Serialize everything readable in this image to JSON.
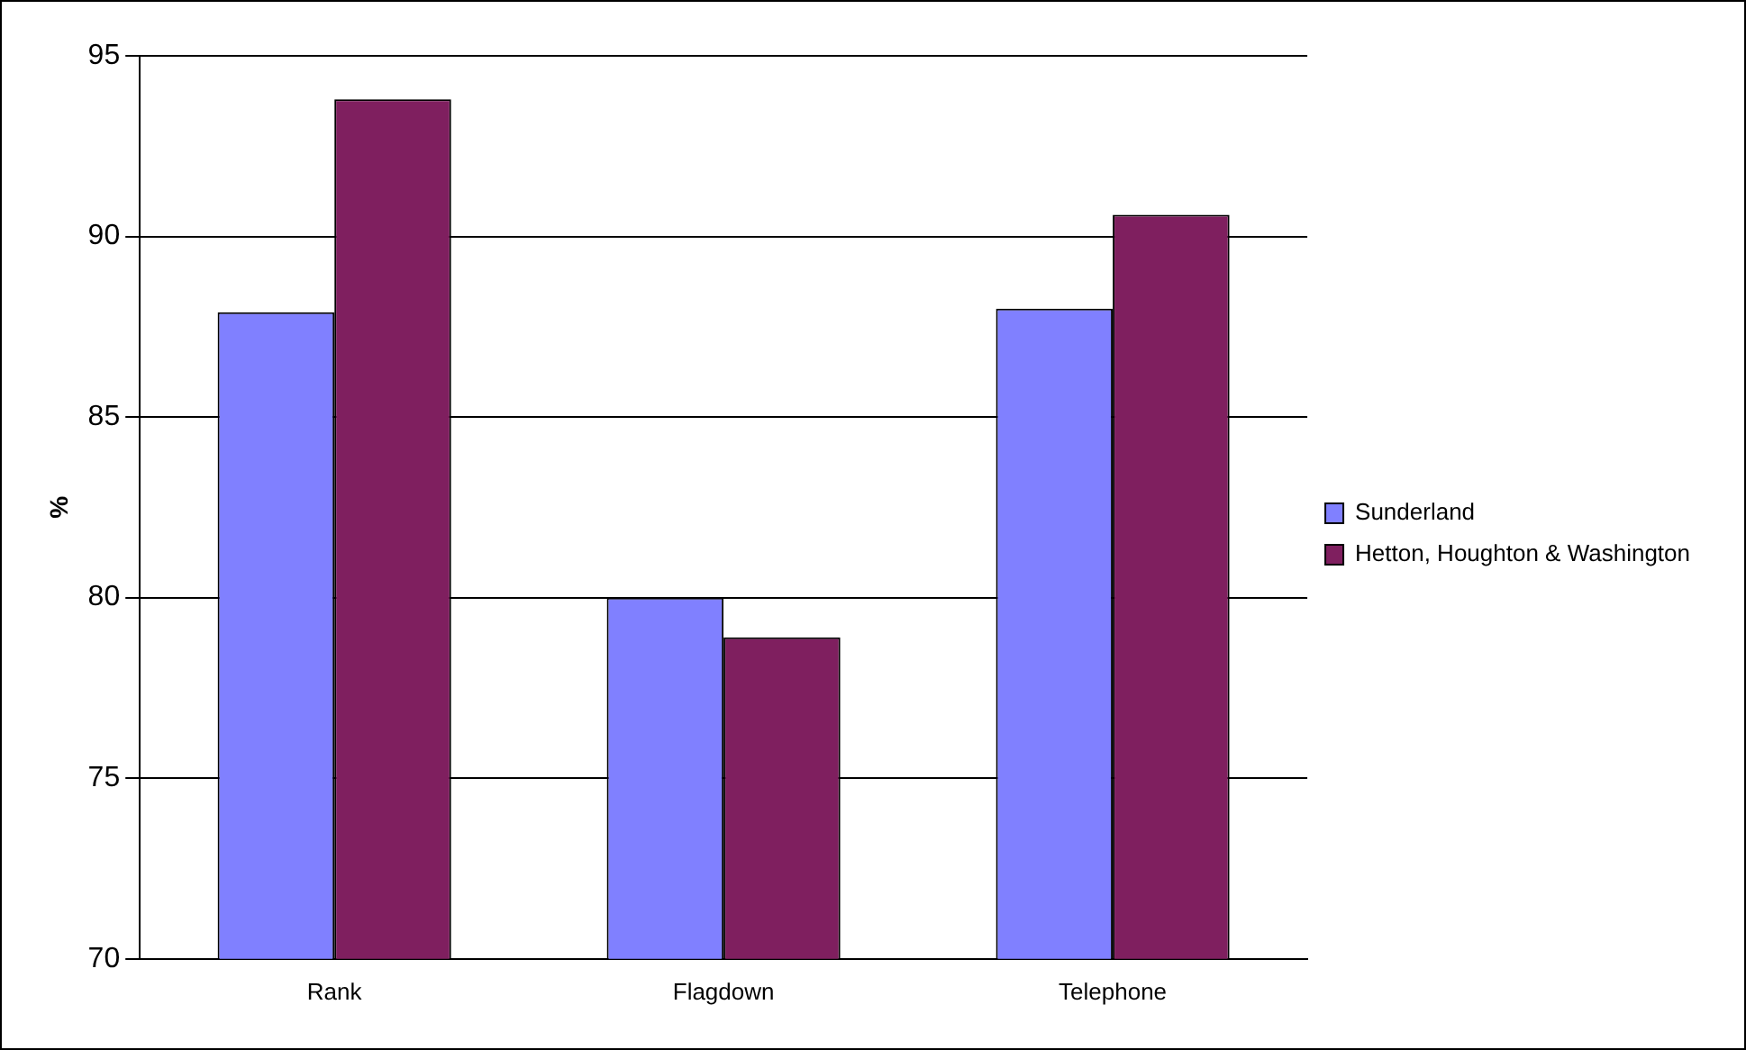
{
  "chart_data": {
    "type": "bar",
    "ylabel": "%",
    "categories": [
      "Rank",
      "Flagdown",
      "Telephone"
    ],
    "series": [
      {
        "name": "Sunderland",
        "color": "#8080ff",
        "values": [
          87.9,
          80.0,
          88.0
        ]
      },
      {
        "name": "Hetton, Houghton & Washington",
        "color": "#7f1f5f",
        "values": [
          93.8,
          78.9,
          90.6
        ]
      }
    ],
    "ylim": [
      70,
      95
    ],
    "yticks": [
      70,
      75,
      80,
      85,
      90,
      95
    ],
    "grid": "y",
    "legend": "right"
  }
}
